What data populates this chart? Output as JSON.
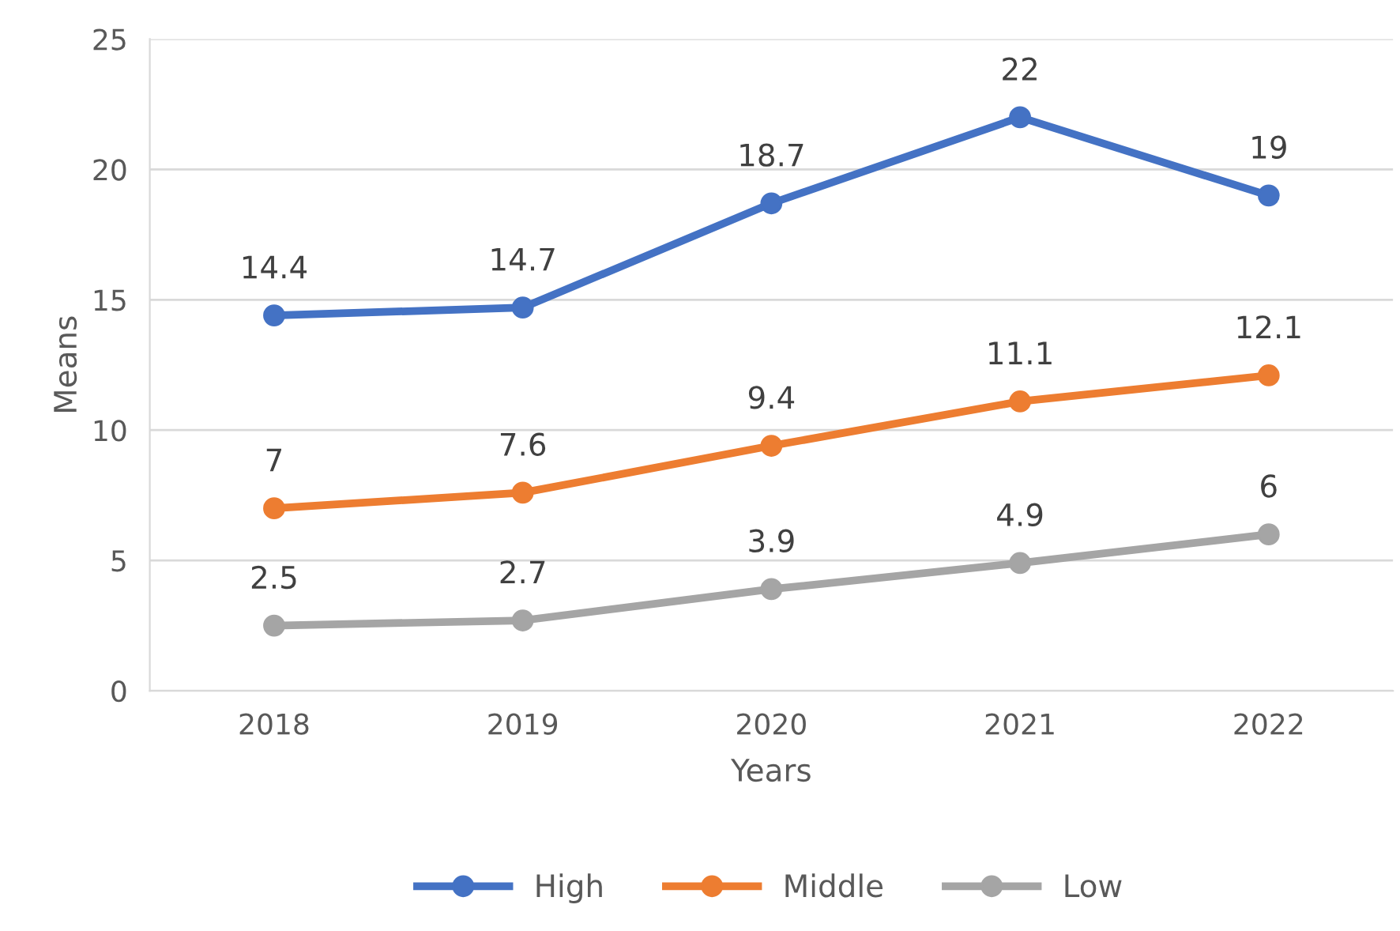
{
  "chart_data": {
    "type": "line",
    "xlabel": "Years",
    "ylabel": "Means",
    "categories": [
      "2018",
      "2019",
      "2020",
      "2021",
      "2022"
    ],
    "series": [
      {
        "name": "High",
        "color": "#4472c4",
        "values": [
          14.4,
          14.7,
          18.7,
          22,
          19
        ]
      },
      {
        "name": "Middle",
        "color": "#ed7d31",
        "values": [
          7,
          7.6,
          9.4,
          11.1,
          12.1
        ]
      },
      {
        "name": "Low",
        "color": "#a5a5a5",
        "values": [
          2.5,
          2.7,
          3.9,
          4.9,
          6
        ]
      }
    ],
    "ylim": [
      0,
      25
    ],
    "yticks": [
      0,
      5,
      10,
      15,
      20,
      25
    ],
    "grid": "y",
    "legend": "bottom",
    "marker": "circle",
    "line_style": "solid",
    "data_labels": true
  }
}
